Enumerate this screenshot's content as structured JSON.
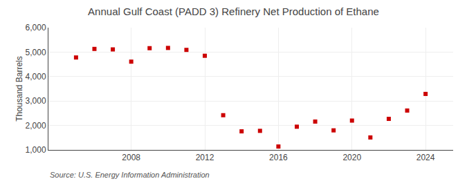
{
  "chart_data": {
    "type": "scatter",
    "title": "Annual Gulf Coast (PADD 3) Refinery Net Production of Ethane",
    "ylabel": "Thousand Barrels",
    "annotations": [
      "Source: U.S. Energy Information Administration"
    ],
    "x": [
      2005,
      2006,
      2007,
      2008,
      2009,
      2010,
      2011,
      2012,
      2013,
      2014,
      2015,
      2016,
      2017,
      2018,
      2019,
      2020,
      2021,
      2022,
      2023,
      2024
    ],
    "values": [
      4780,
      5130,
      5110,
      4610,
      5160,
      5170,
      5090,
      4850,
      2420,
      1760,
      1780,
      1140,
      1950,
      2160,
      1800,
      2200,
      1510,
      2270,
      2610,
      3290
    ],
    "color": "#cc0000",
    "marker": "square",
    "xlim": [
      2003.5,
      2025.5
    ],
    "xticks": [
      2008,
      2012,
      2016,
      2020,
      2024
    ],
    "ylim": [
      1000,
      6000
    ],
    "yticks": [
      {
        "value": 1000,
        "label": "1,000"
      },
      {
        "value": 2000,
        "label": "2,000"
      },
      {
        "value": 3000,
        "label": "3,000"
      },
      {
        "value": 4000,
        "label": "4,000"
      },
      {
        "value": 5000,
        "label": "5,000"
      },
      {
        "value": 6000,
        "label": "6,000"
      }
    ],
    "grid": true
  }
}
